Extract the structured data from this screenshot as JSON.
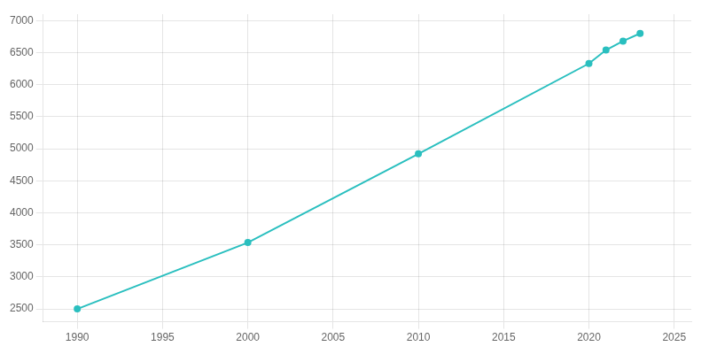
{
  "chart_data": {
    "type": "line",
    "x": [
      1990,
      2000,
      2010,
      2020,
      2021,
      2022,
      2023
    ],
    "values": [
      2500,
      3536,
      4920,
      6330,
      6540,
      6680,
      6800
    ],
    "color": "#2ABFBF",
    "marker": "circle",
    "xlim": [
      1988,
      2026
    ],
    "ylim": [
      2300,
      7100
    ],
    "xticks": [
      1990,
      1995,
      2000,
      2005,
      2010,
      2015,
      2020,
      2025
    ],
    "yticks": [
      2500,
      3000,
      3500,
      4000,
      4500,
      5000,
      5500,
      6000,
      6500,
      7000
    ],
    "grid": true
  }
}
